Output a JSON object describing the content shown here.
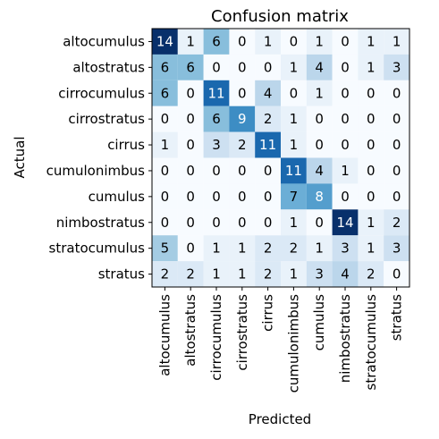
{
  "chart_data": {
    "type": "heatmap",
    "title": "Confusion matrix",
    "xlabel": "Predicted",
    "ylabel": "Actual",
    "x_categories": [
      "altocumulus",
      "altostratus",
      "cirrocumulus",
      "cirrostratus",
      "cirrus",
      "cumulonimbus",
      "cumulus",
      "nimbostratus",
      "stratocumulus",
      "stratus"
    ],
    "y_categories": [
      "altocumulus",
      "altostratus",
      "cirrocumulus",
      "cirrostratus",
      "cirrus",
      "cumulonimbus",
      "cumulus",
      "nimbostratus",
      "stratocumulus",
      "stratus"
    ],
    "values": [
      [
        14,
        1,
        6,
        0,
        1,
        0,
        1,
        0,
        1,
        1
      ],
      [
        6,
        6,
        0,
        0,
        0,
        1,
        4,
        0,
        1,
        3
      ],
      [
        6,
        0,
        11,
        0,
        4,
        0,
        1,
        0,
        0,
        0
      ],
      [
        0,
        0,
        6,
        9,
        2,
        1,
        0,
        0,
        0,
        0
      ],
      [
        1,
        0,
        3,
        2,
        11,
        1,
        0,
        0,
        0,
        0
      ],
      [
        0,
        0,
        0,
        0,
        0,
        11,
        4,
        1,
        0,
        0
      ],
      [
        0,
        0,
        0,
        0,
        0,
        7,
        8,
        0,
        0,
        0
      ],
      [
        0,
        0,
        0,
        0,
        0,
        1,
        0,
        14,
        1,
        2
      ],
      [
        5,
        0,
        1,
        1,
        2,
        2,
        1,
        3,
        1,
        3
      ],
      [
        2,
        2,
        1,
        1,
        2,
        1,
        3,
        4,
        2,
        0
      ]
    ],
    "colormap": "Blues",
    "vmin": 0,
    "vmax": 14,
    "grid": false,
    "legend": "none",
    "text_color_dark": "#000000",
    "text_color_light": "#ffffff"
  }
}
